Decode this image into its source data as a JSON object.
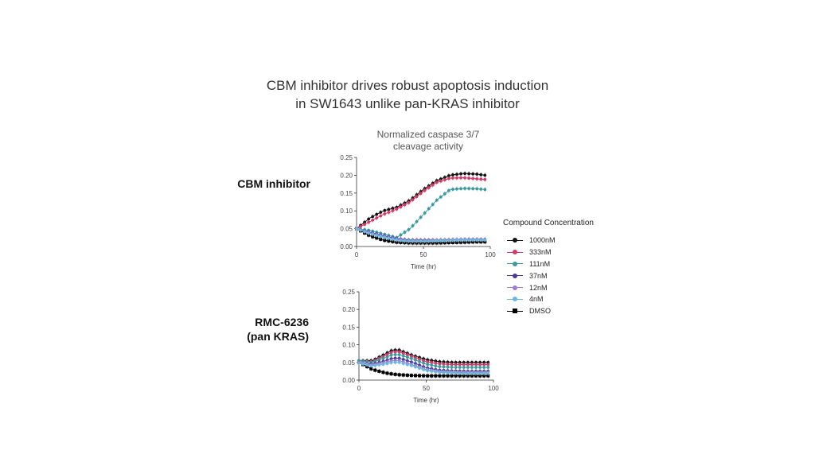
{
  "slide": {
    "title_line1": "CBM inhibitor drives robust apoptosis induction",
    "title_line2": "in SW1643 unlike pan-KRAS inhibitor"
  },
  "rows": {
    "cbm_label": "CBM inhibitor",
    "rmc_label_line1": "RMC-6236",
    "rmc_label_line2": "(pan KRAS)"
  },
  "legend": {
    "title": "Compound Concentration",
    "items": [
      {
        "label": "1000nM",
        "color": "#111111",
        "marker": "circle"
      },
      {
        "label": "333nM",
        "color": "#d63a66",
        "marker": "circle"
      },
      {
        "label": "111nM",
        "color": "#3a9aa0",
        "marker": "circle"
      },
      {
        "label": "37nM",
        "color": "#4a3a9a",
        "marker": "circle"
      },
      {
        "label": "12nM",
        "color": "#a07ad0",
        "marker": "circle"
      },
      {
        "label": "4nM",
        "color": "#6ab8e0",
        "marker": "circle"
      },
      {
        "label": "DMSO",
        "color": "#000000",
        "marker": "square"
      }
    ]
  },
  "chart_data": [
    {
      "type": "line",
      "id": "cbm",
      "title_line1": "Normalized caspase 3/7",
      "title_line2": "cleavage activity",
      "xlabel": "Time (hr)",
      "ylabel": "",
      "xlim": [
        0,
        100
      ],
      "ylim": [
        0,
        0.25
      ],
      "xticks": [
        "0",
        "50",
        "100"
      ],
      "yticks": [
        "0.00",
        "0.05",
        "0.10",
        "0.15",
        "0.20",
        "0.25"
      ],
      "x": [
        0,
        10,
        20,
        30,
        40,
        50,
        60,
        70,
        80,
        90,
        96
      ],
      "series": [
        {
          "name": "1000nM",
          "values": [
            0.05,
            0.08,
            0.1,
            0.11,
            0.13,
            0.16,
            0.185,
            0.2,
            0.205,
            0.203,
            0.2
          ]
        },
        {
          "name": "333nM",
          "values": [
            0.05,
            0.07,
            0.09,
            0.105,
            0.125,
            0.155,
            0.18,
            0.192,
            0.193,
            0.19,
            0.188
          ]
        },
        {
          "name": "111nM",
          "values": [
            0.05,
            0.045,
            0.035,
            0.025,
            0.05,
            0.09,
            0.13,
            0.16,
            0.163,
            0.162,
            0.16
          ]
        },
        {
          "name": "37nM",
          "values": [
            0.05,
            0.04,
            0.03,
            0.022,
            0.018,
            0.018,
            0.018,
            0.019,
            0.02,
            0.02,
            0.02
          ]
        },
        {
          "name": "12nM",
          "values": [
            0.05,
            0.038,
            0.028,
            0.02,
            0.016,
            0.016,
            0.017,
            0.018,
            0.019,
            0.019,
            0.019
          ]
        },
        {
          "name": "4nM",
          "values": [
            0.05,
            0.036,
            0.026,
            0.018,
            0.015,
            0.015,
            0.016,
            0.017,
            0.018,
            0.018,
            0.018
          ]
        },
        {
          "name": "DMSO",
          "values": [
            0.05,
            0.03,
            0.018,
            0.012,
            0.01,
            0.01,
            0.01,
            0.011,
            0.012,
            0.013,
            0.013
          ]
        }
      ]
    },
    {
      "type": "line",
      "id": "rmc",
      "xlabel": "Time (hr)",
      "ylabel": "",
      "xlim": [
        0,
        100
      ],
      "ylim": [
        0,
        0.25
      ],
      "xticks": [
        "0",
        "50",
        "100"
      ],
      "yticks": [
        "0.00",
        "0.05",
        "0.10",
        "0.15",
        "0.20",
        "0.25"
      ],
      "x": [
        0,
        10,
        20,
        25,
        30,
        40,
        50,
        60,
        70,
        80,
        90,
        96
      ],
      "series": [
        {
          "name": "1000nM",
          "values": [
            0.055,
            0.055,
            0.075,
            0.085,
            0.085,
            0.07,
            0.058,
            0.052,
            0.05,
            0.05,
            0.05,
            0.05
          ]
        },
        {
          "name": "333nM",
          "values": [
            0.055,
            0.052,
            0.07,
            0.08,
            0.08,
            0.066,
            0.052,
            0.046,
            0.044,
            0.044,
            0.044,
            0.044
          ]
        },
        {
          "name": "111nM",
          "values": [
            0.055,
            0.05,
            0.064,
            0.072,
            0.072,
            0.06,
            0.045,
            0.038,
            0.036,
            0.036,
            0.036,
            0.036
          ]
        },
        {
          "name": "37nM",
          "values": [
            0.05,
            0.045,
            0.055,
            0.062,
            0.062,
            0.05,
            0.035,
            0.028,
            0.026,
            0.025,
            0.025,
            0.025
          ]
        },
        {
          "name": "12nM",
          "values": [
            0.05,
            0.042,
            0.05,
            0.055,
            0.055,
            0.043,
            0.03,
            0.024,
            0.022,
            0.021,
            0.021,
            0.021
          ]
        },
        {
          "name": "4nM",
          "values": [
            0.048,
            0.04,
            0.046,
            0.05,
            0.05,
            0.04,
            0.027,
            0.022,
            0.02,
            0.019,
            0.019,
            0.019
          ]
        },
        {
          "name": "DMSO",
          "values": [
            0.05,
            0.03,
            0.02,
            0.017,
            0.015,
            0.013,
            0.012,
            0.012,
            0.012,
            0.012,
            0.012,
            0.012
          ]
        }
      ]
    }
  ]
}
